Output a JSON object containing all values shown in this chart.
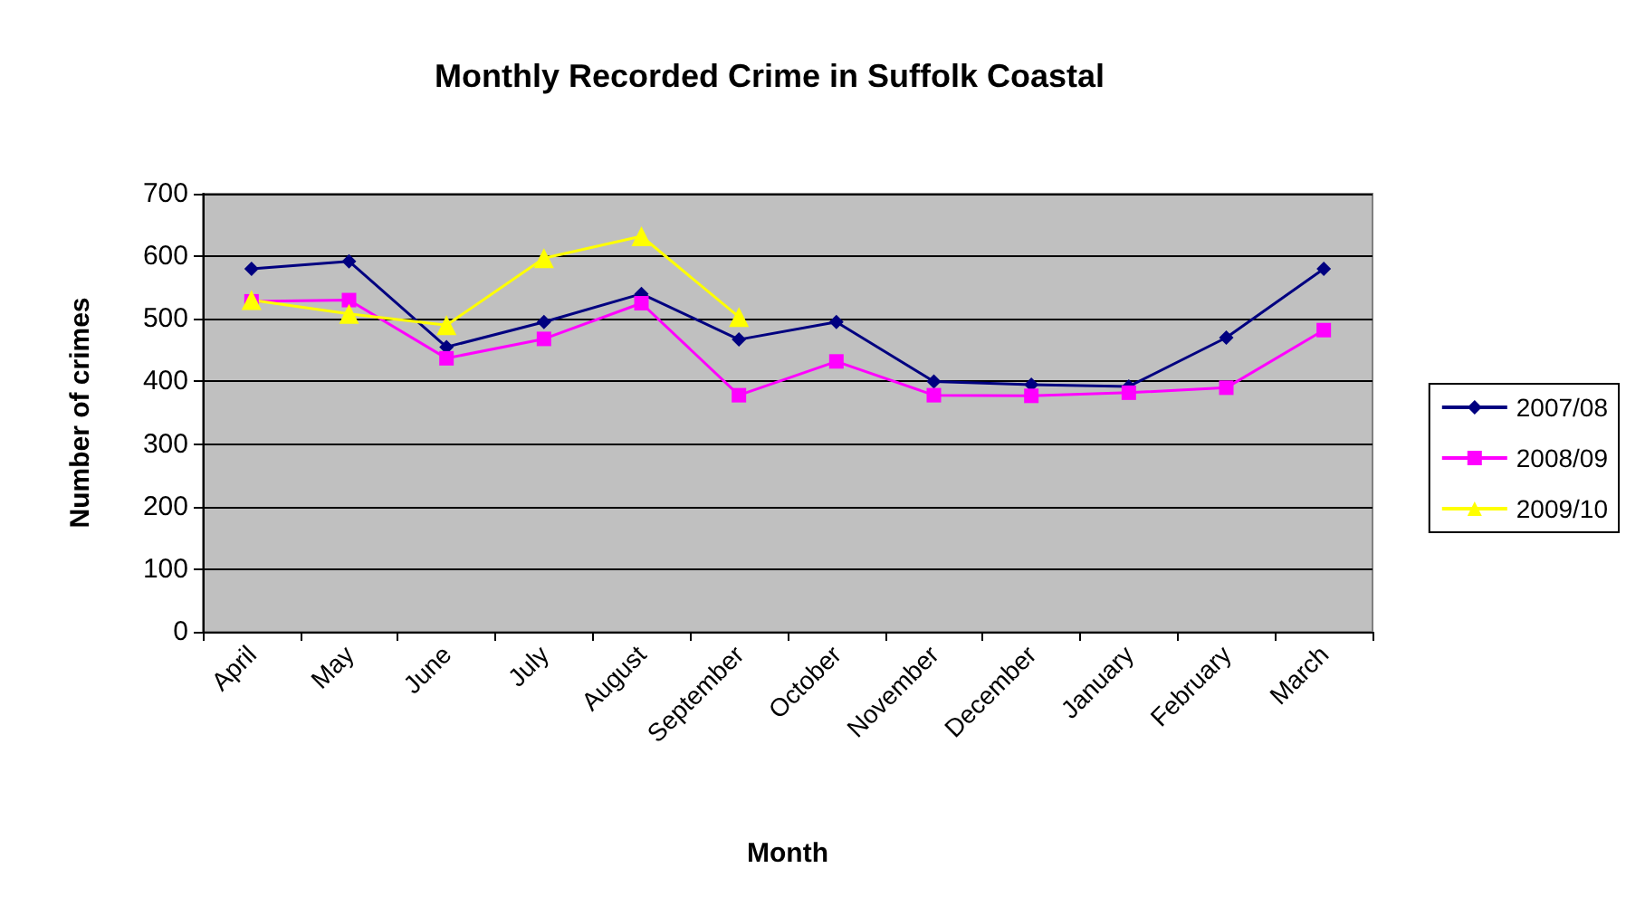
{
  "chart_data": {
    "type": "line",
    "title": "Monthly Recorded Crime in Suffolk Coastal",
    "xlabel": "Month",
    "ylabel": "Number of crimes",
    "categories": [
      "April",
      "May",
      "June",
      "July",
      "August",
      "September",
      "October",
      "November",
      "December",
      "January",
      "February",
      "March"
    ],
    "series": [
      {
        "name": "2007/08",
        "color": "#000080",
        "marker": "diamond",
        "values": [
          580,
          592,
          455,
          495,
          540,
          467,
          495,
          400,
          395,
          392,
          470,
          580
        ]
      },
      {
        "name": "2008/09",
        "color": "#ff00ff",
        "marker": "square",
        "values": [
          528,
          530,
          437,
          468,
          525,
          378,
          432,
          378,
          377,
          382,
          390,
          482
        ]
      },
      {
        "name": "2009/10",
        "color": "#ffff00",
        "marker": "triangle",
        "values": [
          530,
          508,
          490,
          597,
          632,
          503,
          null,
          null,
          null,
          null,
          null,
          null
        ]
      }
    ],
    "ylim": [
      0,
      700
    ],
    "yticks": [
      0,
      100,
      200,
      300,
      400,
      500,
      600,
      700
    ],
    "grid": "y",
    "legend": "right"
  }
}
